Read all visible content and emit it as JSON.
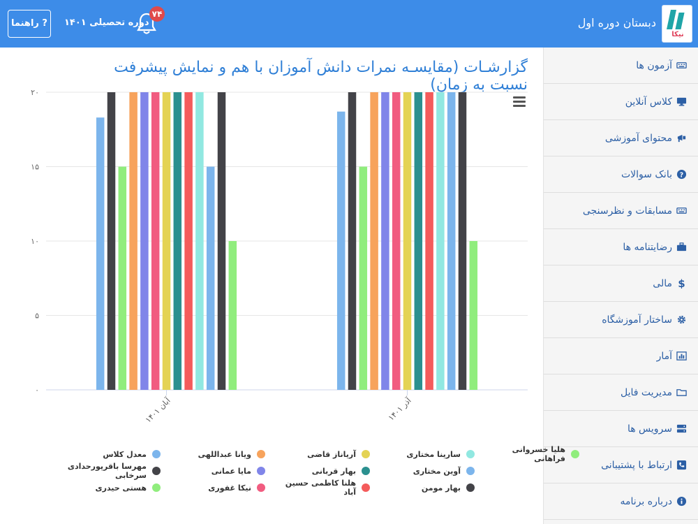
{
  "header": {
    "school_name": "دبستان دوره اول",
    "logo_text": "نیکا",
    "notification_count": "۷۴",
    "academic_period": "دوره تحصیلی ۱۴۰۱",
    "help_label": "? راهنما"
  },
  "sidebar": {
    "items": [
      {
        "label": "آزمون ها",
        "icon": "keyboard-icon"
      },
      {
        "label": "کلاس آنلاین",
        "icon": "monitor-icon"
      },
      {
        "label": "محتوای آموزشی",
        "icon": "bullhorn-icon"
      },
      {
        "label": "بانک سوالات",
        "icon": "question-circle-icon"
      },
      {
        "label": "مسابقات و نظرسنجی",
        "icon": "keyboard-icon"
      },
      {
        "label": "رضایتنامه ها",
        "icon": "briefcase-icon"
      },
      {
        "label": "مالی",
        "icon": "dollar-icon"
      },
      {
        "label": "ساختار آموزشگاه",
        "icon": "gear-icon"
      },
      {
        "label": "آمار",
        "icon": "bar-chart-icon"
      },
      {
        "label": "مدیریت فایل",
        "icon": "folder-icon"
      },
      {
        "label": "سرویس ها",
        "icon": "server-icon"
      },
      {
        "label": "ارتباط با پشتیبانی",
        "icon": "phone-icon"
      },
      {
        "label": "درباره برنامه",
        "icon": "info-icon"
      }
    ]
  },
  "page_title": "گزارشـات (مقایسـه نمرات دانش آموزان با هم و نمایش پیشرفت نسبت به زمان)",
  "chart_data": {
    "type": "bar",
    "categories": [
      "آبان ۱۴۰۱",
      "آذر ۱۴۰۱"
    ],
    "ylim": [
      0,
      20
    ],
    "yticks": [
      "۰",
      "۵",
      "۱۰",
      "۱۵",
      "۲۰"
    ],
    "grid": true,
    "legend_position": "bottom",
    "series": [
      {
        "name": "معدل کلاس",
        "color": "#7cb5ec",
        "values": [
          18.3,
          18.7
        ]
      },
      {
        "name": "مهرسا باقرپورحدادی سرخابی",
        "color": "#434348",
        "values": [
          20,
          20
        ]
      },
      {
        "name": "هستی حیدری",
        "color": "#90ed7d",
        "values": [
          15,
          15
        ]
      },
      {
        "name": "ویانا عبداللهی",
        "color": "#f7a35c",
        "values": [
          20,
          20
        ]
      },
      {
        "name": "مایا عمانی",
        "color": "#8085e9",
        "values": [
          20,
          20
        ]
      },
      {
        "name": "نیکا غفوری",
        "color": "#f15c80",
        "values": [
          20,
          20
        ]
      },
      {
        "name": "آریاناز قاضی",
        "color": "#e4d354",
        "values": [
          20,
          20
        ]
      },
      {
        "name": "بهار قربانی",
        "color": "#2b908f",
        "values": [
          20,
          20
        ]
      },
      {
        "name": "هلنا کاظمی حسین آباد",
        "color": "#f45b5b",
        "values": [
          20,
          20
        ]
      },
      {
        "name": "سارینا مختاری",
        "color": "#91e8e1",
        "values": [
          20,
          20
        ]
      },
      {
        "name": "آوین مختاری",
        "color": "#7cb5ec",
        "values": [
          15,
          20
        ]
      },
      {
        "name": "بهار مومن",
        "color": "#434348",
        "values": [
          20,
          20
        ]
      },
      {
        "name": "هلیا خسروانی فراهانی",
        "color": "#90ed7d",
        "values": [
          10,
          10
        ]
      }
    ]
  }
}
